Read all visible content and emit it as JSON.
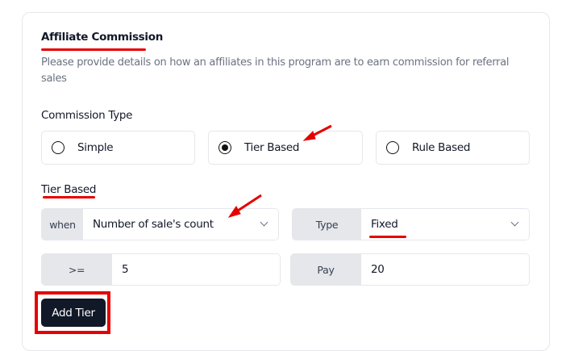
{
  "section": {
    "title": "Affiliate Commission",
    "description": "Please provide details on how an affiliates in this program are to earn commission for referral sales"
  },
  "commission_type": {
    "label": "Commission Type",
    "options": [
      {
        "label": "Simple",
        "selected": false
      },
      {
        "label": "Tier Based",
        "selected": true
      },
      {
        "label": "Rule Based",
        "selected": false
      }
    ]
  },
  "tier": {
    "title": "Tier Based",
    "when_label": "when",
    "when_value": "Number of sale's count",
    "type_label": "Type",
    "type_value": "Fixed",
    "gte_label": ">=",
    "gte_value": "5",
    "pay_label": "Pay",
    "pay_value": "20",
    "add_button": "Add Tier"
  },
  "colors": {
    "annotation": "#e60000",
    "button": "#111827"
  }
}
